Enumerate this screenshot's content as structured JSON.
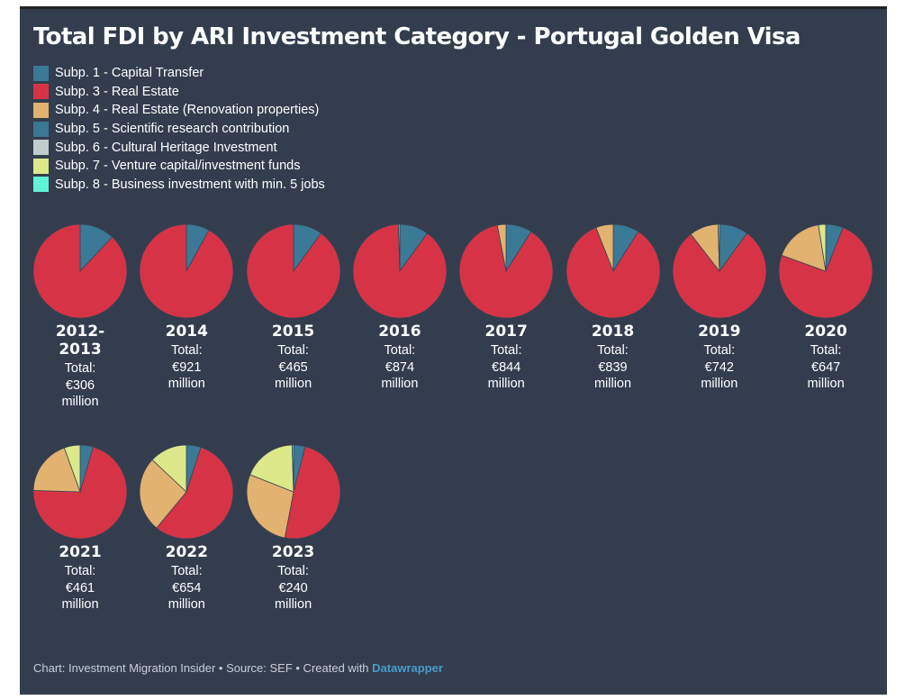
{
  "chart_data": {
    "type": "pie",
    "title": "Total FDI by ARI Investment Category - Portugal Golden Visa",
    "legend_placement": "top-left",
    "categories": [
      {
        "name": "Subp. 1 - Capital Transfer",
        "color": "#3a7a96"
      },
      {
        "name": "Subp. 3 - Real Estate",
        "color": "#d63446"
      },
      {
        "name": "Subp. 4 - Real Estate (Renovation properties)",
        "color": "#e2b270"
      },
      {
        "name": "Subp. 5 - Scientific research contribution",
        "color": "#397892"
      },
      {
        "name": "Subp. 6 - Cultural Heritage Investment",
        "color": "#bfcdcd"
      },
      {
        "name": "Subp. 7 - Venture capital/investment funds",
        "color": "#dce88a"
      },
      {
        "name": "Subp. 8 - Business investment with min. 5 jobs",
        "color": "#62f3d6"
      }
    ],
    "unit": "percent share (estimated)",
    "pies": [
      {
        "year": "2012-2013",
        "total": "Total: €306 million",
        "shares": [
          12,
          88,
          0,
          0,
          0,
          0,
          0
        ]
      },
      {
        "year": "2014",
        "total": "Total: €921 million",
        "shares": [
          8,
          92,
          0,
          0,
          0,
          0,
          0
        ]
      },
      {
        "year": "2015",
        "total": "Total: €465 million",
        "shares": [
          10,
          90,
          0,
          0,
          0,
          0,
          0
        ]
      },
      {
        "year": "2016",
        "total": "Total: €874 million",
        "shares": [
          10,
          89.5,
          0.5,
          0,
          0,
          0,
          0
        ]
      },
      {
        "year": "2017",
        "total": "Total: €844 million",
        "shares": [
          9,
          88,
          3,
          0,
          0,
          0,
          0
        ]
      },
      {
        "year": "2018",
        "total": "Total: €839 million",
        "shares": [
          9,
          85,
          6,
          0,
          0,
          0,
          0
        ]
      },
      {
        "year": "2019",
        "total": "Total: €742 million",
        "shares": [
          10,
          79.5,
          10,
          0,
          0,
          0.5,
          0
        ]
      },
      {
        "year": "2020",
        "total": "Total: €647 million",
        "shares": [
          6,
          74.5,
          17,
          0,
          0,
          2.5,
          0
        ]
      },
      {
        "year": "2021",
        "total": "Total: €461 million",
        "shares": [
          4.5,
          71,
          19,
          0,
          0,
          5.5,
          0
        ]
      },
      {
        "year": "2022",
        "total": "Total: €654 million",
        "shares": [
          5,
          56,
          26,
          0,
          0,
          13,
          0
        ]
      },
      {
        "year": "2023",
        "total": "Total: €240 million",
        "shares": [
          4,
          49,
          28,
          0,
          0,
          18.5,
          0.5
        ]
      }
    ]
  },
  "footer": {
    "text": "Chart: Investment Migration Insider • Source: SEF • Created with ",
    "link": "Datawrapper"
  }
}
